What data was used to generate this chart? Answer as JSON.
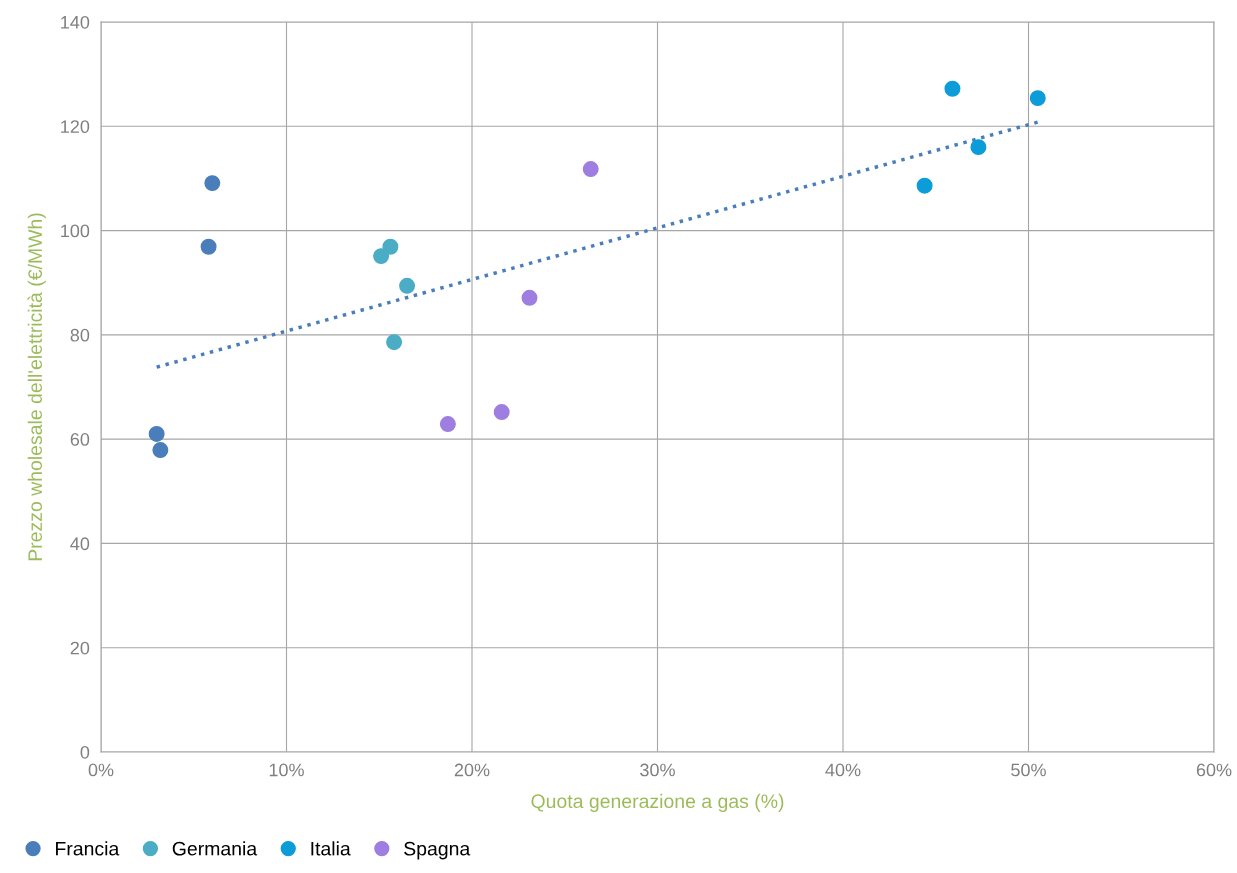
{
  "chart_data": {
    "type": "scatter",
    "xlabel": "Quota generazione a gas (%)",
    "ylabel": "Prezzo wholesale dell'elettricità (€/MWh)",
    "xlim": [
      0,
      60
    ],
    "xticks": [
      {
        "value": 0,
        "label": "0%"
      },
      {
        "value": 10,
        "label": "10%"
      },
      {
        "value": 20,
        "label": "20%"
      },
      {
        "value": 30,
        "label": "30%"
      },
      {
        "value": 40,
        "label": "40%"
      },
      {
        "value": 50,
        "label": "50%"
      },
      {
        "value": 60,
        "label": "60%"
      }
    ],
    "ylim": [
      0,
      140
    ],
    "yticks": [
      0,
      20,
      40,
      60,
      80,
      100,
      120,
      140
    ],
    "grid": true,
    "legend": "bottom left",
    "marker": "circle",
    "series": [
      {
        "name": "Francia",
        "color": "#4a7ebb",
        "x": [
          3.0,
          3.2,
          5.8,
          6.0
        ],
        "values": [
          61.0,
          57.9,
          96.9,
          109.1
        ]
      },
      {
        "name": "Germania",
        "color": "#4bacc6",
        "x": [
          15.1,
          15.6,
          16.5,
          15.8
        ],
        "values": [
          95.1,
          96.9,
          89.4,
          78.6
        ]
      },
      {
        "name": "Italia",
        "color": "#0c9dd9",
        "x": [
          44.4,
          45.9,
          47.3,
          50.5
        ],
        "values": [
          108.6,
          127.2,
          116.0,
          125.4
        ]
      },
      {
        "name": "Spagna",
        "color": "#9e7ee0",
        "x": [
          18.7,
          21.6,
          23.1,
          26.4
        ],
        "values": [
          62.9,
          65.2,
          87.1,
          111.8
        ]
      },
      {
        "type": "line",
        "color": "#4a7ebb",
        "line_style": "dotted",
        "marker": "none",
        "x": [
          3.0,
          50.5
        ],
        "values": [
          73.8,
          120.8
        ]
      }
    ]
  }
}
